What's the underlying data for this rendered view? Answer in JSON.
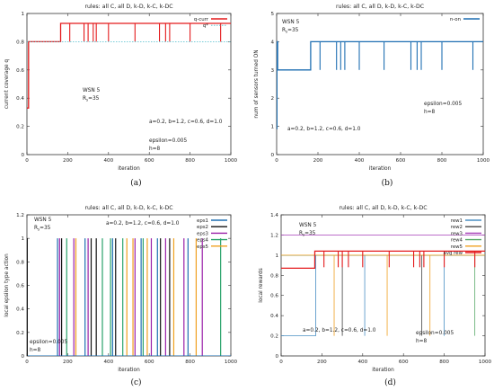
{
  "captions": [
    "(a)",
    "(b)",
    "(c)",
    "(d)"
  ],
  "chart_data": [
    {
      "type": "line",
      "title": "rules: all C, all D, k-D, k-C, k-DC",
      "xlabel": "iteration",
      "ylabel": "current coverage q",
      "xlim": [
        0,
        1000
      ],
      "ylim": [
        0,
        1
      ],
      "xticks": [
        0,
        200,
        400,
        600,
        800,
        1000
      ],
      "yticks": [
        0,
        0.2,
        0.4,
        0.6,
        0.8,
        1
      ],
      "ytick_labels": [
        "0",
        "0.2",
        "0.4",
        "0.6",
        "0.8",
        "1"
      ],
      "grid": false,
      "legend": "top-right",
      "series": [
        {
          "name": "q-curr",
          "color": "#e41a1c",
          "style": "solid",
          "x": [
            0,
            8,
            8,
            165,
            165,
            1000
          ],
          "y": [
            0.33,
            0.33,
            0.8,
            0.8,
            0.93,
            0.93
          ],
          "dips": [
            210,
            280,
            300,
            325,
            340,
            400,
            530,
            650,
            680,
            700,
            800,
            950
          ],
          "dip_value": 0.8
        },
        {
          "name": "q*",
          "color": "#4dbbcc",
          "style": "dotted",
          "x": [
            0,
            1000
          ],
          "y": [
            0.8,
            0.8
          ]
        }
      ],
      "annotations": [
        [
          "WSN 5"
        ],
        [
          "R",
          "s",
          "=35"
        ],
        [
          "a=0.2, b=1.2, c=0.6, d=1.0"
        ],
        [
          "epsilon=0.005"
        ],
        [
          "h=8"
        ]
      ]
    },
    {
      "type": "line",
      "title": "rules: all C, all D, k-D, k-C, k-DC",
      "xlabel": "iteration",
      "ylabel": "num of sensors turned ON",
      "xlim": [
        0,
        1000
      ],
      "ylim": [
        0,
        5
      ],
      "xticks": [
        0,
        200,
        400,
        600,
        800,
        1000
      ],
      "yticks": [
        0,
        1,
        2,
        3,
        4,
        5
      ],
      "ytick_labels": [
        "0",
        "1",
        "2",
        "3",
        "4",
        "5"
      ],
      "grid": false,
      "legend": "top-right",
      "series": [
        {
          "name": "n-on",
          "color": "#1f6fb2",
          "style": "solid",
          "x": [
            0,
            5,
            5,
            165,
            165,
            1000
          ],
          "y": [
            4,
            4,
            3,
            3,
            4,
            4
          ],
          "spike": [
            2,
            0.9
          ],
          "dips": [
            210,
            290,
            310,
            330,
            400,
            520,
            650,
            680,
            700,
            800,
            950
          ],
          "dip_value": 3
        }
      ],
      "annotations": [
        [
          "WSN 5"
        ],
        [
          "R",
          "s",
          "=35"
        ],
        [
          "epsilon=0.005"
        ],
        [
          "h=8"
        ],
        [
          "a=0.2, b=1.2, c=0.6, d=1.0"
        ]
      ]
    },
    {
      "type": "line",
      "title": "rules: all C, all D, k-D, k-C, k-DC",
      "xlabel": "iteration",
      "ylabel": "local epsilon type action",
      "xlim": [
        0,
        1000
      ],
      "ylim": [
        0,
        1.2
      ],
      "xticks": [
        0,
        200,
        400,
        600,
        800,
        1000
      ],
      "yticks": [
        0,
        0.2,
        0.4,
        0.6,
        0.8,
        1,
        1.2
      ],
      "ytick_labels": [
        "0",
        "0.2",
        "0.4",
        "0.6",
        "0.8",
        "1",
        "1.2"
      ],
      "grid": false,
      "legend": "top-right",
      "series": [
        {
          "name": "eps1",
          "color": "#1f6fb2",
          "spikes": [
            150,
            285,
            420,
            560,
            640,
            790
          ],
          "value": 1
        },
        {
          "name": "eps2",
          "color": "#111111",
          "spikes": [
            170,
            315,
            340,
            435,
            655,
            700
          ],
          "value": 1
        },
        {
          "name": "eps3",
          "color": "#9a1fa8",
          "spikes": [
            160,
            230,
            300,
            530,
            610,
            680,
            770,
            860
          ],
          "value": 1
        },
        {
          "name": "eps4",
          "color": "#2aa36b",
          "spikes": [
            195,
            370,
            410,
            470,
            570,
            950
          ],
          "value": 1
        },
        {
          "name": "eps5",
          "color": "#f0a020",
          "spikes": [
            240,
            490,
            520,
            590,
            720,
            830
          ],
          "value": 1
        }
      ],
      "annotations": [
        [
          "WSN 5"
        ],
        [
          "R",
          "s",
          "=35"
        ],
        [
          "a=0.2, b=1.2, c=0.6, d=1.0"
        ],
        [
          "epsilon=0.005"
        ],
        [
          "h=8"
        ]
      ]
    },
    {
      "type": "line",
      "title": "rules: all C, all D, k-D, k-C, k-DC",
      "xlabel": "iteration",
      "ylabel": "local rewards",
      "xlim": [
        0,
        1000
      ],
      "ylim": [
        0,
        1.4
      ],
      "xticks": [
        0,
        200,
        400,
        600,
        800,
        1000
      ],
      "yticks": [
        0,
        0.2,
        0.4,
        0.6,
        0.8,
        1,
        1.2,
        1.4
      ],
      "ytick_labels": [
        "0",
        "0.2",
        "0.4",
        "0.6",
        "0.8",
        "1",
        "1.2",
        "1.4"
      ],
      "grid": false,
      "legend": "top-right",
      "series": [
        {
          "name": "rew1",
          "color": "#4a8fc4",
          "x": [
            0,
            1000
          ],
          "y": [
            1.0,
            1.0
          ],
          "drops": [
            410,
            800
          ],
          "drop_to": 0.2
        },
        {
          "name": "rew2",
          "color": "#444444",
          "x": [
            0,
            1000
          ],
          "y": [
            1.0,
            1.0
          ],
          "drops": [
            300,
            690
          ],
          "drop_to": 0.2
        },
        {
          "name": "rew3",
          "color": "#a63fb8",
          "x": [
            0,
            1000
          ],
          "y": [
            1.2,
            1.2
          ],
          "drops": [],
          "drop_to": 0.2
        },
        {
          "name": "rew4",
          "color": "#5aaa6b",
          "x": [
            0,
            1000
          ],
          "y": [
            1.0,
            1.0
          ],
          "drops": [
            950
          ],
          "drop_to": 0.2
        },
        {
          "name": "rew5",
          "color": "#f0a020",
          "x": [
            0,
            1000
          ],
          "y": [
            1.0,
            1.0
          ],
          "drops": [
            260,
            520,
            730
          ],
          "drop_to": 0.2
        },
        {
          "name": "avg rew",
          "color": "#e41a1c",
          "x": [
            0,
            165,
            165,
            1000
          ],
          "y": [
            0.87,
            0.87,
            1.04,
            1.04
          ],
          "drops": [
            210,
            280,
            300,
            330,
            400,
            530,
            650,
            680,
            700,
            800,
            950
          ],
          "drop_to": 0.88
        }
      ],
      "low_rew1": {
        "x": [
          0,
          170
        ],
        "y": [
          0.2,
          0.2
        ]
      },
      "annotations": [
        [
          "WSN 5"
        ],
        [
          "R",
          "s",
          "=35"
        ],
        [
          "epsilon=0.005"
        ],
        [
          "h=8"
        ],
        [
          "a=0.2, b=1.2, c=0.6, d=1.0"
        ]
      ]
    }
  ]
}
